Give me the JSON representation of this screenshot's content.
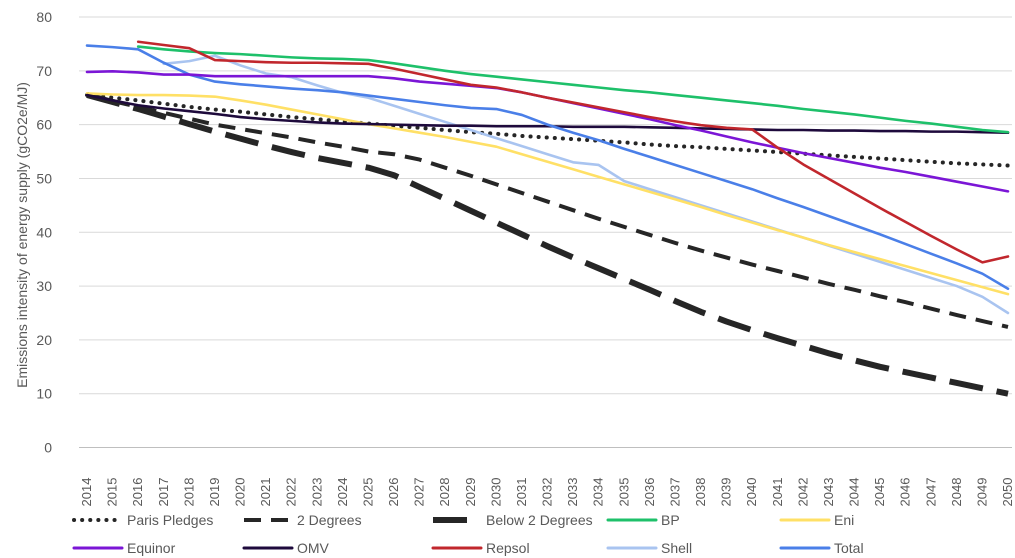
{
  "chart_data": {
    "type": "line",
    "title": "",
    "xlabel": "",
    "ylabel": "Emissions intensity of energy supply (gCO2e/MJ)",
    "ylim": [
      0,
      80
    ],
    "yticks": [
      0,
      10,
      20,
      30,
      40,
      50,
      60,
      70,
      80
    ],
    "categories": [
      "2014",
      "2015",
      "2016",
      "2017",
      "2018",
      "2019",
      "2020",
      "2021",
      "2022",
      "2023",
      "2024",
      "2025",
      "2026",
      "2027",
      "2028",
      "2029",
      "2030",
      "2031",
      "2032",
      "2033",
      "2034",
      "2035",
      "2036",
      "2037",
      "2038",
      "2039",
      "2040",
      "2041",
      "2042",
      "2043",
      "2044",
      "2045",
      "2046",
      "2047",
      "2048",
      "2049",
      "2050"
    ],
    "grid": "horizontal",
    "legend_position": "bottom",
    "series": [
      {
        "name": "Paris Pledges",
        "color": "#262626",
        "style": "dotted",
        "values": [
          65.5,
          65,
          64.5,
          63.9,
          63.3,
          62.8,
          62.4,
          61.9,
          61.4,
          61,
          60.6,
          60.2,
          59.8,
          59.4,
          59,
          58.6,
          58.3,
          57.9,
          57.6,
          57.3,
          57,
          56.7,
          56.3,
          56,
          55.8,
          55.5,
          55.2,
          54.9,
          54.6,
          54.3,
          54,
          53.7,
          53.4,
          53.1,
          52.8,
          52.6,
          52.4
        ]
      },
      {
        "name": "2 Degrees",
        "color": "#262626",
        "style": "dashed",
        "values": [
          65.5,
          64.4,
          63.3,
          62.2,
          61.1,
          60,
          59.2,
          58.4,
          57.6,
          56.7,
          55.9,
          55,
          54.5,
          53.5,
          52,
          50.5,
          48.9,
          47.3,
          45.7,
          44.1,
          42.5,
          41,
          39.5,
          38,
          36.6,
          35.3,
          34,
          32.8,
          31.6,
          30.4,
          29.3,
          28.1,
          27,
          25.8,
          24.6,
          23.5,
          22.4
        ]
      },
      {
        "name": "Below 2 Degrees",
        "color": "#262626",
        "style": "longdash",
        "values": [
          65.5,
          64.2,
          62.9,
          61.5,
          60.1,
          58.7,
          57.4,
          56.1,
          54.9,
          53.8,
          52.9,
          52,
          50.6,
          48.4,
          46.2,
          44,
          41.8,
          39.6,
          37.4,
          35.3,
          33.3,
          31.3,
          29.3,
          27.2,
          25.2,
          23.4,
          21.8,
          20.3,
          18.9,
          17.5,
          16.2,
          15,
          14,
          13,
          12,
          11,
          10
        ]
      },
      {
        "name": "BP",
        "color": "#1ec06a",
        "style": "solid",
        "values": [
          null,
          null,
          74.5,
          74,
          73.6,
          73.3,
          73.1,
          72.8,
          72.5,
          72.3,
          72.2,
          72,
          71.4,
          70.7,
          70,
          69.4,
          68.9,
          68.4,
          67.9,
          67.4,
          66.9,
          66.4,
          66,
          65.5,
          65,
          64.5,
          64,
          63.5,
          62.9,
          62.4,
          61.9,
          61.3,
          60.7,
          60.2,
          59.6,
          59,
          58.6
        ]
      },
      {
        "name": "Eni",
        "color": "#ffe066",
        "style": "solid",
        "values": [
          65.8,
          65.6,
          65.5,
          65.5,
          65.4,
          65.2,
          64.5,
          63.7,
          62.8,
          61.9,
          61,
          60.1,
          59.3,
          58.5,
          57.7,
          56.8,
          55.9,
          54.5,
          53.1,
          51.7,
          50.3,
          48.9,
          47.5,
          46.1,
          44.7,
          43.2,
          41.8,
          40.4,
          39,
          37.6,
          36.3,
          35,
          33.7,
          32.4,
          31.1,
          29.8,
          28.5
        ]
      },
      {
        "name": "Equinor",
        "color": "#7b16d6",
        "style": "solid",
        "values": [
          69.8,
          69.9,
          69.7,
          69.3,
          69.3,
          69,
          69,
          69,
          69,
          69,
          69,
          69,
          68.6,
          68,
          67.6,
          67.2,
          66.8,
          66,
          65,
          64,
          63,
          62,
          61,
          59.9,
          58.9,
          57.8,
          56.7,
          55.7,
          54.7,
          53.8,
          52.9,
          52,
          51.2,
          50.3,
          49.4,
          48.5,
          47.6
        ]
      },
      {
        "name": "OMV",
        "color": "#1e0a3c",
        "style": "solid",
        "values": [
          65.5,
          64.5,
          63.6,
          63,
          62.5,
          62,
          61.4,
          61,
          60.7,
          60.4,
          60.2,
          60.1,
          60,
          59.9,
          59.8,
          59.8,
          59.7,
          59.7,
          59.7,
          59.6,
          59.6,
          59.6,
          59.5,
          59.4,
          59.3,
          59.2,
          59.1,
          59,
          59,
          58.9,
          58.9,
          58.8,
          58.8,
          58.7,
          58.7,
          58.6,
          58.5
        ]
      },
      {
        "name": "Repsol",
        "color": "#c1272d",
        "style": "solid",
        "values": [
          null,
          null,
          75.4,
          74.8,
          74.2,
          72,
          71.8,
          71.6,
          71.5,
          71.5,
          71.4,
          71.3,
          70.4,
          69.4,
          68.4,
          67.4,
          66.9,
          66,
          65,
          64.1,
          63.2,
          62.3,
          61.4,
          60.6,
          59.9,
          59.4,
          59.1,
          55.7,
          52.6,
          49.9,
          47.2,
          44.5,
          41.9,
          39.3,
          36.8,
          34.4,
          35.5
        ]
      },
      {
        "name": "Shell",
        "color": "#a9c4f0",
        "style": "solid",
        "values": [
          null,
          null,
          null,
          71.3,
          71.8,
          72.8,
          71,
          69.5,
          68.8,
          67.3,
          65.9,
          65,
          63.5,
          62,
          60.5,
          59,
          57.5,
          56,
          54.5,
          53,
          52.5,
          49.5,
          48,
          46.5,
          45,
          43.5,
          42,
          40.5,
          39,
          37.5,
          36,
          34.5,
          33,
          31.5,
          30,
          28,
          25
        ]
      },
      {
        "name": "Total",
        "color": "#4a7fe8",
        "style": "solid",
        "values": [
          74.7,
          74.4,
          74,
          71.5,
          69.3,
          68,
          67.5,
          67.1,
          66.7,
          66.4,
          66,
          65.4,
          64.8,
          64.2,
          63.6,
          63.1,
          62.9,
          61.8,
          60,
          58.5,
          57.1,
          55.5,
          54,
          52.5,
          51,
          49.5,
          48,
          46.3,
          44.7,
          43,
          41.3,
          39.6,
          37.8,
          36,
          34.2,
          32.3,
          29.5
        ]
      }
    ]
  }
}
